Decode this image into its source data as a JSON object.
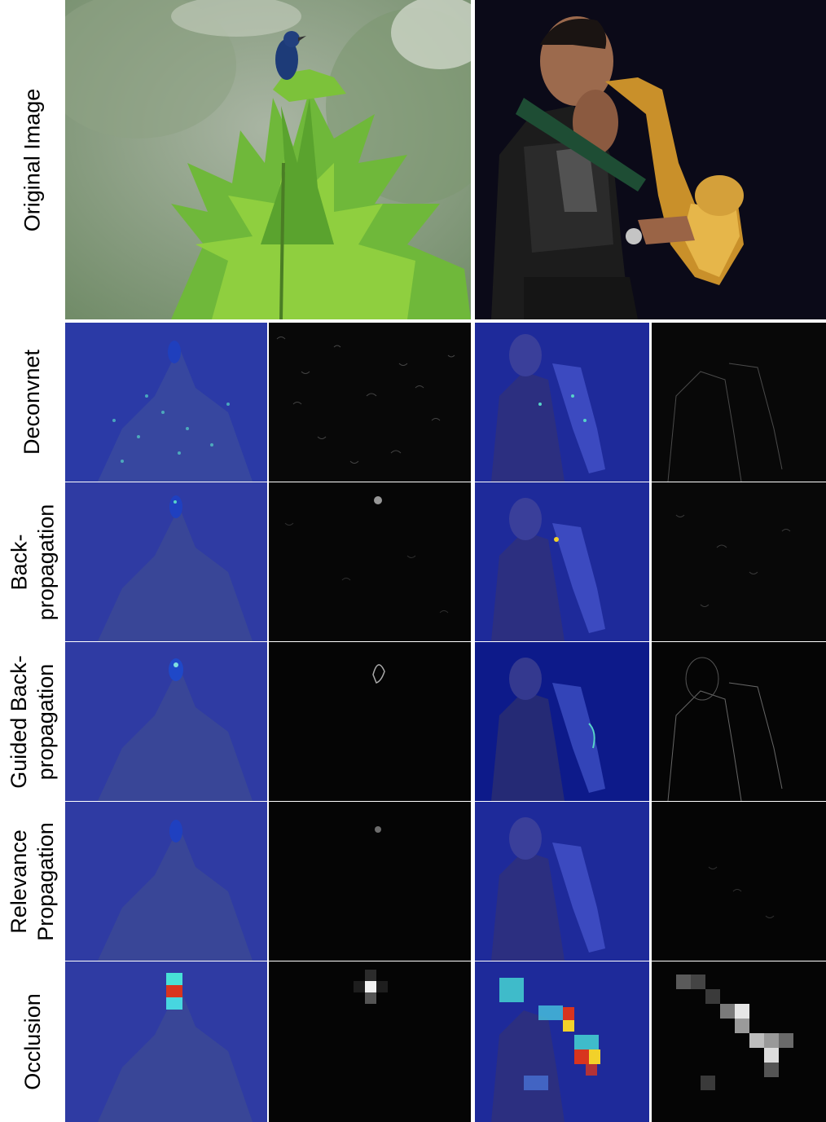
{
  "figure": {
    "row_labels": [
      "Original Image",
      "Deconvnet",
      "Back-\npropagation",
      "Guided Back-\npropagation",
      "Relevance\nPropagation",
      "Occlusion"
    ],
    "images": [
      "bird",
      "saxophone player"
    ],
    "colors": {
      "heatmap_base": "#1e2a9a",
      "heat_cyan": "#47e0d6",
      "heat_red": "#d8341e",
      "heat_yellow": "#f2d12a",
      "saliency_base": "#050505"
    }
  }
}
